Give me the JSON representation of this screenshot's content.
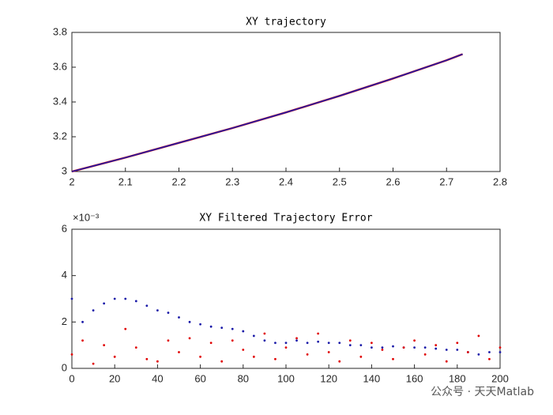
{
  "chart_data": [
    {
      "type": "line",
      "title": "XY trajectory",
      "x": [
        2.0,
        2.1,
        2.2,
        2.3,
        2.4,
        2.5,
        2.6,
        2.7,
        2.73
      ],
      "series": [
        {
          "color": "#e00000",
          "values": [
            3.0,
            3.08,
            3.165,
            3.25,
            3.34,
            3.435,
            3.535,
            3.64,
            3.675
          ]
        },
        {
          "color": "#1a1aa8",
          "values": [
            3.0,
            3.08,
            3.165,
            3.25,
            3.34,
            3.435,
            3.535,
            3.64,
            3.675
          ]
        }
      ],
      "xlim": [
        2,
        2.8
      ],
      "xticks": [
        2,
        2.1,
        2.2,
        2.3,
        2.4,
        2.5,
        2.6,
        2.7,
        2.8
      ],
      "ylim": [
        3,
        3.8
      ],
      "yticks": [
        3,
        3.2,
        3.4,
        3.6,
        3.8
      ]
    },
    {
      "type": "scatter",
      "title": "XY Filtered Trajectory Error",
      "exponent_label": "×10⁻³",
      "x": [
        0,
        5,
        10,
        15,
        20,
        25,
        30,
        35,
        40,
        45,
        50,
        55,
        60,
        65,
        70,
        75,
        80,
        85,
        90,
        95,
        100,
        105,
        110,
        115,
        120,
        125,
        130,
        135,
        140,
        145,
        150,
        155,
        160,
        165,
        170,
        175,
        180,
        185,
        190,
        195,
        200
      ],
      "series": [
        {
          "color": "#1a1aa8",
          "values": [
            0.003,
            0.002,
            0.0025,
            0.0028,
            0.003,
            0.003,
            0.0029,
            0.0027,
            0.0025,
            0.0024,
            0.0022,
            0.002,
            0.0019,
            0.0018,
            0.00175,
            0.0017,
            0.0016,
            0.0014,
            0.0012,
            0.0011,
            0.0011,
            0.0012,
            0.0011,
            0.00115,
            0.0011,
            0.0011,
            0.001,
            0.001,
            0.0009,
            0.0009,
            0.00095,
            0.0009,
            0.0009,
            0.0009,
            0.00085,
            0.0008,
            0.0008,
            0.0007,
            0.0006,
            0.0007,
            0.0007
          ]
        },
        {
          "color": "#e00000",
          "values": [
            0.0006,
            0.0012,
            0.0002,
            0.001,
            0.0005,
            0.0017,
            0.0009,
            0.0004,
            0.0003,
            0.0012,
            0.0007,
            0.0013,
            0.0005,
            0.0011,
            0.0003,
            0.0012,
            0.0008,
            0.0005,
            0.0015,
            0.0004,
            0.0009,
            0.0013,
            0.0006,
            0.0015,
            0.0007,
            0.0003,
            0.0012,
            0.0005,
            0.0011,
            0.0008,
            0.0004,
            0.0009,
            0.0012,
            0.0006,
            0.001,
            0.0003,
            0.0011,
            0.0007,
            0.0014,
            0.0004,
            0.0009
          ]
        }
      ],
      "xlim": [
        0,
        200
      ],
      "xticks": [
        0,
        20,
        40,
        60,
        80,
        100,
        120,
        140,
        160,
        180,
        200
      ],
      "ylim": [
        0,
        0.006
      ],
      "yticks": [
        {
          "value": 0,
          "label": "0"
        },
        {
          "value": 0.002,
          "label": "2"
        },
        {
          "value": 0.004,
          "label": "4"
        },
        {
          "value": 0.006,
          "label": "6"
        }
      ]
    }
  ],
  "watermark": "公众号 · 天天Matlab"
}
